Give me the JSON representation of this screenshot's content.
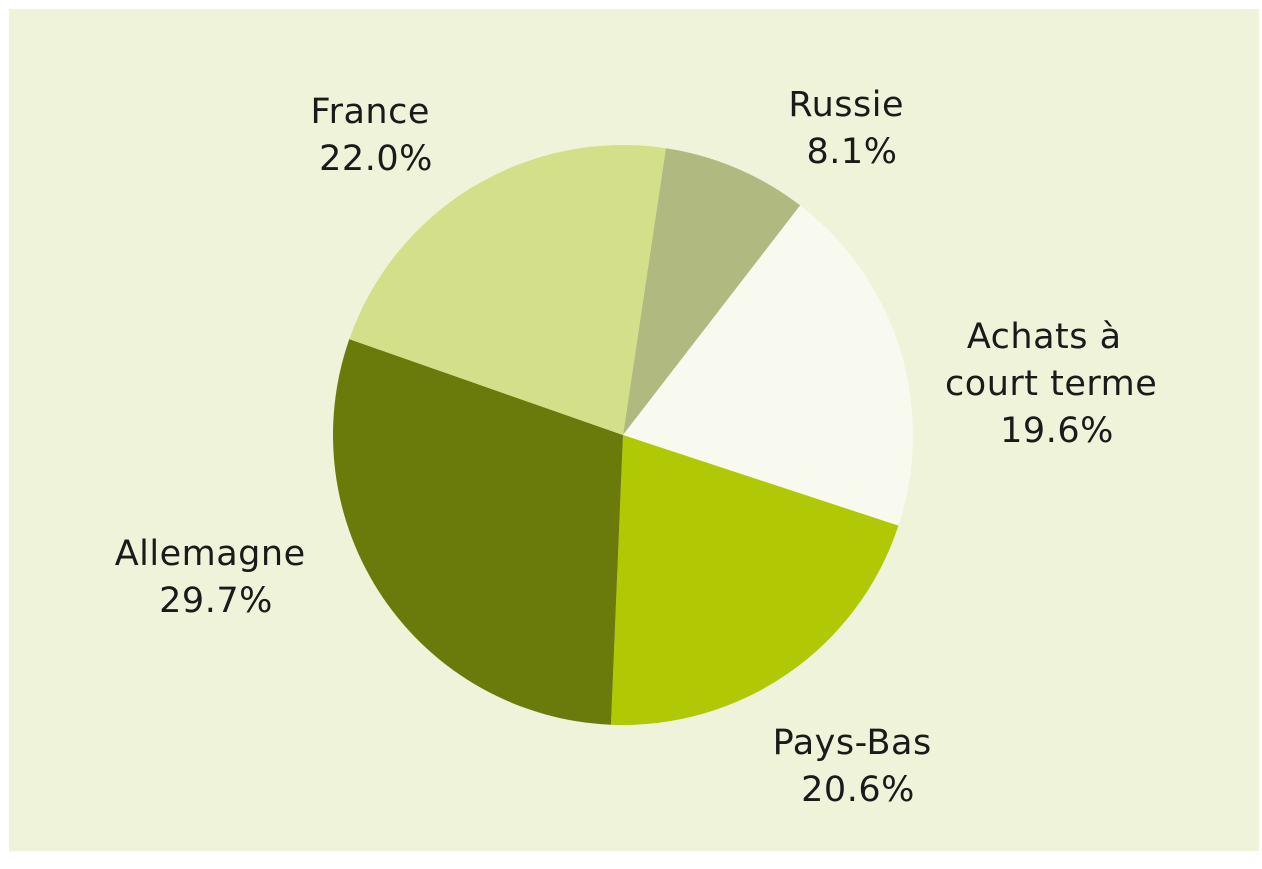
{
  "chart_data": {
    "type": "pie",
    "title": "",
    "slices": [
      {
        "name": "Russie",
        "value": 8.1,
        "label_lines": [
          "Russie",
          "8.1%"
        ],
        "color": "#b0ba80"
      },
      {
        "name": "Achats à court terme",
        "value": 19.6,
        "label_lines": [
          "Achats à",
          "court terme",
          "19.6%"
        ],
        "color": "#f8faf0"
      },
      {
        "name": "Pays-Bas",
        "value": 20.6,
        "label_lines": [
          "Pays-Bas",
          "20.6%"
        ],
        "color": "#b1c905"
      },
      {
        "name": "Allemagne",
        "value": 29.7,
        "label_lines": [
          "Allemagne",
          "29.7%"
        ],
        "color": "#6b7b0b"
      },
      {
        "name": "France",
        "value": 22.0,
        "label_lines": [
          "France",
          "22.0%"
        ],
        "color": "#d3df89"
      }
    ],
    "start": "top, clockwise",
    "legend": "none"
  }
}
